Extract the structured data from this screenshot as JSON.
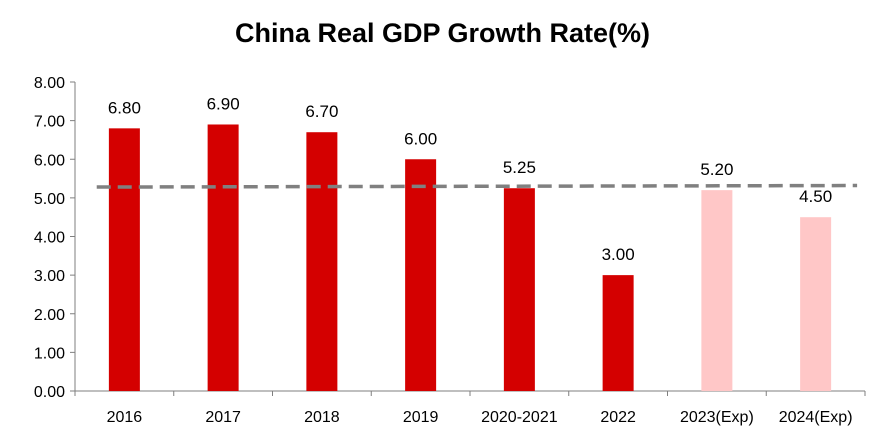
{
  "chart_data": {
    "type": "bar",
    "title": "China Real GDP Growth Rate(%)",
    "xlabel": "",
    "ylabel": "",
    "categories": [
      "2016",
      "2017",
      "2018",
      "2019",
      "2020-2021",
      "2022",
      "2023(Exp)",
      "2024(Exp)"
    ],
    "values": [
      6.8,
      6.9,
      6.7,
      6.0,
      5.25,
      3.0,
      5.2,
      4.5
    ],
    "data_labels": [
      "6.80",
      "6.90",
      "6.70",
      "6.00",
      "5.25",
      "3.00",
      "5.20",
      "4.50"
    ],
    "yticks": [
      "0.00",
      "1.00",
      "2.00",
      "3.00",
      "4.00",
      "5.00",
      "6.00",
      "7.00",
      "8.00"
    ],
    "ylim": [
      0,
      8
    ],
    "grid": false,
    "legend": "none",
    "trend_line": {
      "style": "dashed",
      "color": "#808080",
      "start_value": 5.28,
      "end_value": 5.32
    },
    "colors": {
      "actual": "#d40000",
      "expected": "#ffc7c7",
      "expected_categories": [
        "2023(Exp)",
        "2024(Exp)"
      ]
    }
  }
}
